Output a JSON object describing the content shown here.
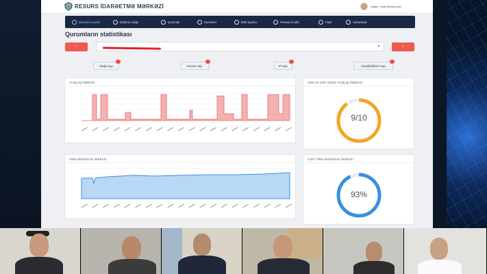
{
  "brand": {
    "name": "RESURS İDARƏETMƏ MƏRKƏZİ"
  },
  "user": {
    "label": "Salam, Tariel Məmmədov"
  },
  "nav": {
    "items": [
      {
        "label": "İdarəetmə paneli",
        "icon": "dashboard-icon"
      },
      {
        "label": "Elektron sorğu",
        "icon": "globe-icon"
      },
      {
        "label": "Qurumlar",
        "icon": "gear-icon"
      },
      {
        "label": "Domenlər",
        "icon": "globe-icon"
      },
      {
        "label": "Blok siyahısı",
        "icon": "shield-icon"
      },
      {
        "label": "Pentest (Audit)",
        "icon": "shield-icon"
      },
      {
        "label": "Paslı",
        "icon": "box-icon"
      },
      {
        "label": "Sazlamalar",
        "icon": "gear-icon"
      }
    ]
  },
  "page_title": "Qurumların statistikası",
  "nav_prev_label": "‹",
  "nav_next_label": "›",
  "select_caret": "▾",
  "stat_buttons": [
    {
      "label": "Sorğu sayı"
    },
    {
      "label": "Domen sayı"
    },
    {
      "label": "IP sayı"
    },
    {
      "label": "Cavabdehlərin sayı"
    }
  ],
  "cards": {
    "availability_title": "AYIQLIQ İNDEKSİ",
    "availability30_title": "SON 30 GÜN ÜÇÜN AYIQLIQ İNDEKSİ",
    "availability30_value": "9/10",
    "security_title": "TƏHLÜKƏSİZLİK İNDEKSİ",
    "current_security_title": "CARİ TƏHLÜKƏSİZLİK İNDEKSİ",
    "current_security_value": "93%"
  },
  "rings": {
    "availability30": {
      "fraction": 0.9,
      "color": "#f5a524"
    },
    "current_security": {
      "fraction": 0.93,
      "color": "#3a8fe0"
    }
  },
  "colors": {
    "nav_bg": "#1c2744",
    "accent_red": "#ee5a4f",
    "chart_red": "#f08a8a",
    "chart_blue": "#3b8fe0"
  }
}
